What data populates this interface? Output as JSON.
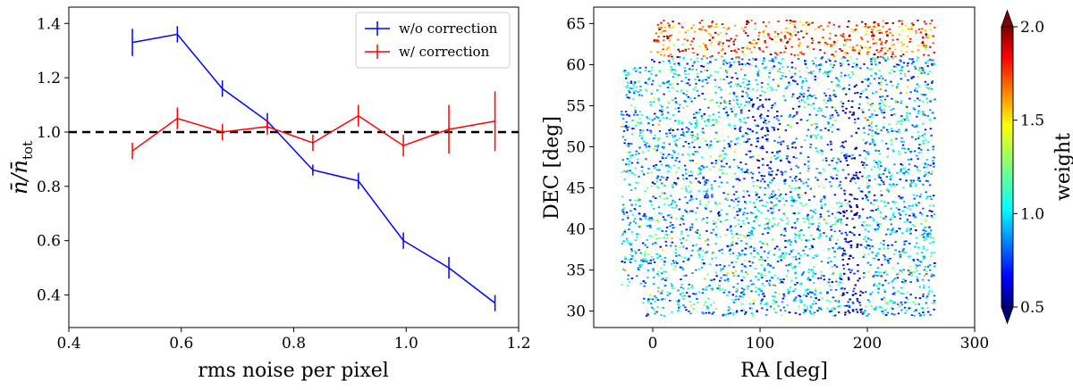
{
  "chart_data": [
    {
      "type": "line",
      "xlabel": "rms noise per pixel",
      "ylabel_main": "n̄/n̄",
      "ylabel_sub": "tot",
      "xlim": [
        0.4,
        1.2
      ],
      "ylim": [
        0.28,
        1.46
      ],
      "xticks": [
        0.4,
        0.6,
        0.8,
        1.0,
        1.2
      ],
      "xtick_labels": [
        "0.4",
        "0.6",
        "0.8",
        "1.0",
        "1.2"
      ],
      "yticks": [
        0.4,
        0.6,
        0.8,
        1.0,
        1.2,
        1.4
      ],
      "ytick_labels": [
        "0.4",
        "0.6",
        "0.8",
        "1.0",
        "1.2",
        "1.4"
      ],
      "reference_line": {
        "y": 1.0,
        "style": "dashed",
        "color": "#000000"
      },
      "legend_position": "top-right",
      "series": [
        {
          "name": "w/o correction",
          "color": "#0000ff",
          "x": [
            0.513,
            0.593,
            0.673,
            0.753,
            0.834,
            0.915,
            0.995,
            1.076,
            1.158
          ],
          "y": [
            1.33,
            1.36,
            1.16,
            1.04,
            0.86,
            0.82,
            0.6,
            0.5,
            0.37
          ],
          "err": [
            0.05,
            0.03,
            0.03,
            0.03,
            0.02,
            0.03,
            0.03,
            0.04,
            0.03
          ]
        },
        {
          "name": "w/ correction",
          "color": "#ff0000",
          "x": [
            0.513,
            0.593,
            0.673,
            0.753,
            0.834,
            0.915,
            0.995,
            1.076,
            1.158
          ],
          "y": [
            0.93,
            1.05,
            1.0,
            1.02,
            0.96,
            1.06,
            0.95,
            1.01,
            1.04
          ],
          "err": [
            0.03,
            0.04,
            0.03,
            0.03,
            0.03,
            0.04,
            0.04,
            0.09,
            0.11
          ]
        }
      ]
    },
    {
      "type": "scatter",
      "xlabel": "RA [deg]",
      "ylabel": "DEC [deg]",
      "xlim": [
        -55,
        300
      ],
      "ylim": [
        28,
        67
      ],
      "xticks": [
        0,
        100,
        200,
        300
      ],
      "xtick_labels": [
        "0",
        "100",
        "200",
        "300"
      ],
      "yticks": [
        30,
        35,
        40,
        45,
        50,
        55,
        60,
        65
      ],
      "ytick_labels": [
        "30",
        "35",
        "40",
        "45",
        "50",
        "55",
        "60",
        "65"
      ],
      "footprint": {
        "ra_min": -30,
        "ra_max": 262,
        "dec_min": 29.5,
        "dec_max": 65.5
      },
      "colorbar": {
        "label": "weight",
        "min": 0.5,
        "max": 2.0,
        "ticks": [
          0.5,
          1.0,
          1.5,
          2.0
        ],
        "tick_labels": [
          "0.5",
          "1.0",
          "1.5",
          "2.0"
        ],
        "colormap": "jet"
      }
    }
  ]
}
